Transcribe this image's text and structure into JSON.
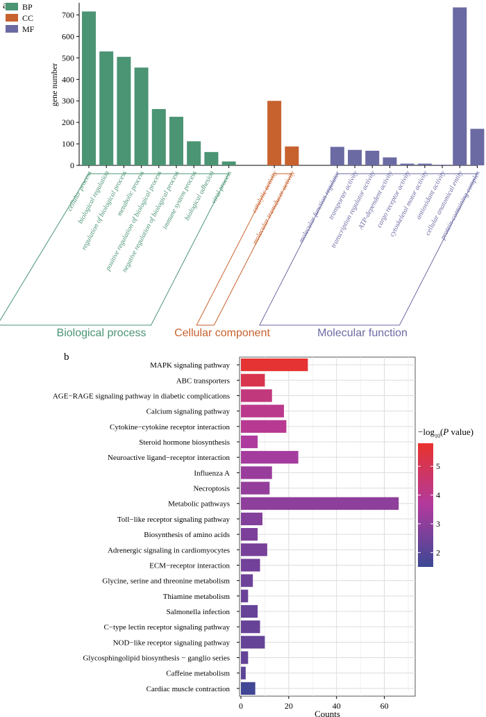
{
  "panel_a": {
    "label": "a",
    "chart_data": {
      "type": "bar",
      "ylabel": "gene number",
      "ylim": [
        0,
        750
      ],
      "yticks": [
        0,
        100,
        200,
        300,
        400,
        500,
        600,
        700
      ],
      "legend": {
        "placement": "top-left",
        "entries": [
          {
            "key": "BP",
            "color": "#4b9474"
          },
          {
            "key": "CC",
            "color": "#c7622e"
          },
          {
            "key": "MF",
            "color": "#6b6aa3"
          }
        ]
      },
      "groups": [
        {
          "key": "BP",
          "title": "Biological process",
          "color": "#4b9474",
          "categories": [
            "cellular process",
            "biological regulation",
            "regulation of biological process",
            "metabolic process",
            "positive regulation of biological process",
            "negative regulation of biological process",
            "immune system process",
            "biological adhesion",
            "viral process"
          ],
          "values": [
            716,
            530,
            505,
            455,
            262,
            226,
            112,
            62,
            18
          ]
        },
        {
          "key": "CC",
          "title": "Cellular component",
          "color": "#c7622e",
          "categories": [
            "catalytic activity",
            "molecular transducer activity"
          ],
          "values": [
            300,
            88
          ]
        },
        {
          "key": "MF",
          "title": "Molecular function",
          "color": "#6b6aa3",
          "categories": [
            "molecular function regulator",
            "transporter activity",
            "transcription regulator activity",
            "ATP-dependent activity",
            "cargo receptor activity",
            "cytoskeletal motor activity",
            "antioxidant activity",
            "cellular anatomical entity",
            "protein-containing complex"
          ],
          "values": [
            86,
            72,
            68,
            37,
            8,
            8,
            3,
            735,
            170
          ]
        }
      ]
    }
  },
  "panel_b": {
    "label": "b",
    "chart_data": {
      "type": "bar",
      "orientation": "horizontal",
      "xlabel": "Counts",
      "xlim": [
        0,
        70
      ],
      "xticks": [
        0,
        20,
        40,
        60
      ],
      "grid": true,
      "categories": [
        "MAPK signaling pathway",
        "ABC transporters",
        "AGE−RAGE signaling pathway in diabetic complications",
        "Calcium signaling pathway",
        "Cytokine−cytokine receptor interaction",
        "Steroid hormone biosynthesis",
        "Neuroactive ligand−receptor interaction",
        "Influenza A",
        "Necroptosis",
        "Metabolic pathways",
        "Toll−like receptor signaling pathway",
        "Biosynthesis of amino acids",
        "Adrenergic signaling in cardiomyocytes",
        "ECM−receptor interaction",
        "Glycine, serine and threonine metabolism",
        "Thiamine metabolism",
        "Salmonella infection",
        "C−type lectin receptor signaling pathway",
        "NOD−like receptor signaling pathway",
        "Glycosphingolipid biosynthesis − ganglio series",
        "Caffeine metabolism",
        "Cardiac muscle contraction"
      ],
      "values": [
        28,
        10,
        13,
        18,
        19,
        7,
        24,
        13,
        12,
        66,
        9,
        7,
        11,
        8,
        5,
        3,
        7,
        8,
        10,
        3,
        2,
        6
      ],
      "color_values": [
        5.7,
        5.2,
        4.3,
        4.0,
        3.9,
        3.6,
        3.4,
        3.2,
        3.1,
        3.0,
        2.8,
        2.7,
        2.6,
        2.5,
        2.4,
        2.35,
        2.3,
        2.3,
        2.25,
        2.2,
        2.1,
        1.6
      ],
      "colorbar": {
        "title_prefix": "−log",
        "title_sub": "10",
        "title_open": "(",
        "title_italic": "P",
        "title_rest": " value)",
        "ticks": [
          2,
          3,
          4,
          5
        ],
        "range": [
          1.5,
          5.8
        ],
        "color_low": "#3b4894",
        "color_mid": "#b23a9e",
        "color_high": "#e8322d"
      }
    }
  }
}
